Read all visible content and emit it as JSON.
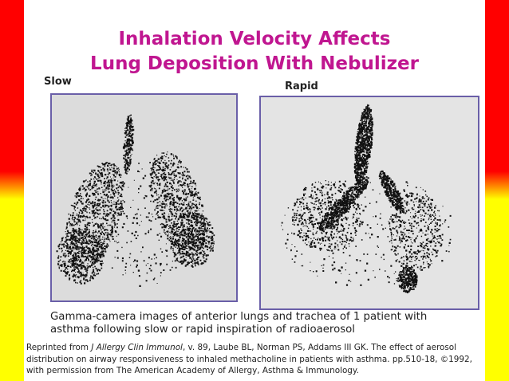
{
  "title": [
    "Inhalation Velocity Affects",
    "Lung Deposition With Nebulizer"
  ],
  "images": [
    {
      "label": "Slow"
    },
    {
      "label": "Rapid"
    }
  ],
  "caption": [
    "Gamma-camera images of anterior lungs and trachea of 1 patient with",
    "asthma following slow or rapid inspiration of radioaerosol"
  ],
  "reference": {
    "lead": "Reprinted from ",
    "journal": "J Allergy Clin Immunol",
    "line1_rest": ", v. 89, Laube BL, Norman PS, Addams III GK. The effect of aerosol",
    "line2": "distribution on airway responsiveness to inhaled methacholine in patients with asthma. pp.510-18, ©1992,",
    "line3": "with permission from The American Academy of Allergy, Asthma & Immunology."
  }
}
